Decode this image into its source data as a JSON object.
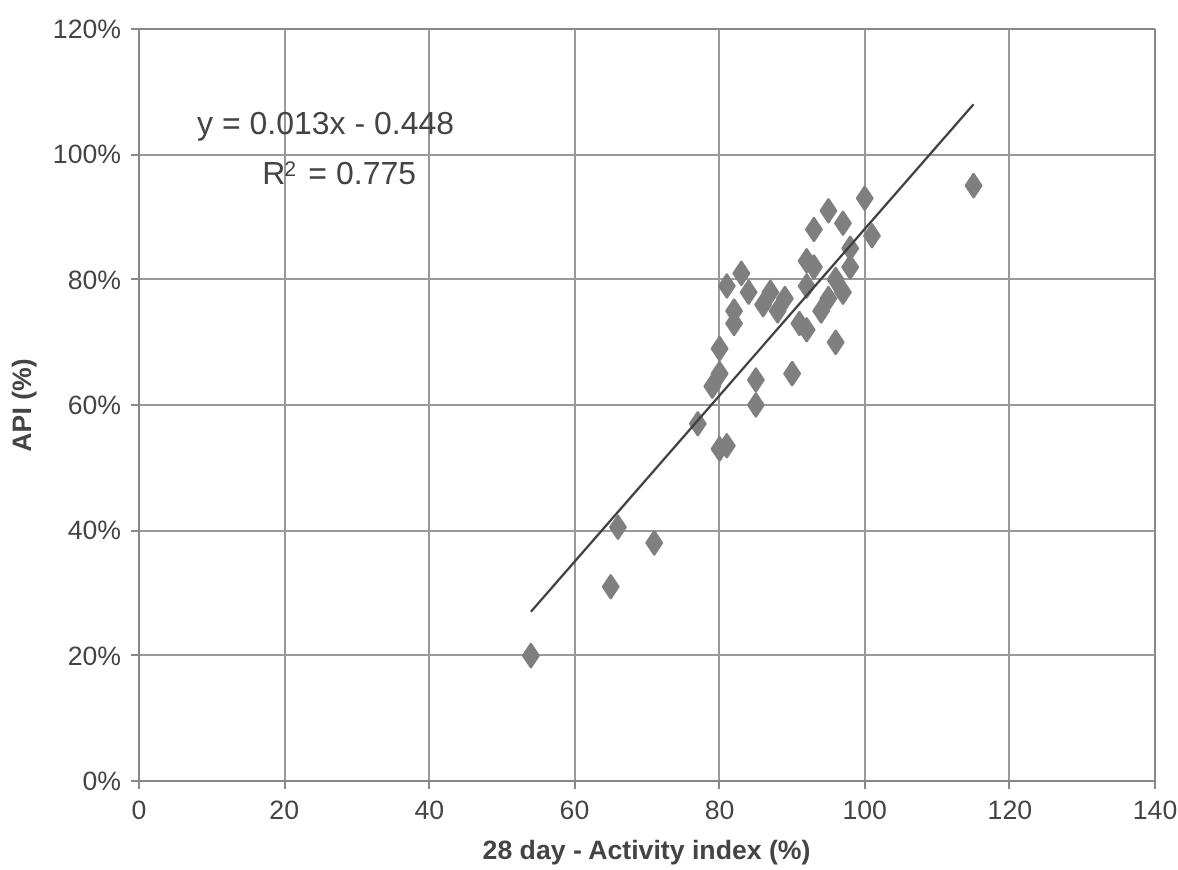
{
  "chart_data": {
    "type": "scatter",
    "xlabel": "28 day - Activity index (%)",
    "ylabel": "API (%)",
    "x": [
      54,
      65,
      66,
      71,
      77,
      79,
      80,
      80,
      80,
      81,
      81,
      82,
      82,
      83,
      84,
      85,
      85,
      86,
      87,
      88,
      89,
      90,
      91,
      92,
      92,
      92,
      93,
      93,
      94,
      95,
      95,
      96,
      96,
      97,
      97,
      98,
      98,
      100,
      101,
      115
    ],
    "series": [
      {
        "color": "#7f7f7f",
        "marker": "diamond",
        "values": [
          20,
          31,
          40.5,
          38,
          57,
          63,
          65,
          69,
          53,
          53.5,
          79,
          73,
          75,
          81,
          78,
          64,
          60,
          76,
          78,
          75,
          77,
          65,
          73,
          72,
          79,
          83,
          88,
          82,
          75,
          91,
          77,
          70,
          80,
          78,
          89,
          82,
          85,
          93,
          87,
          95
        ]
      },
      {
        "type": "line",
        "color": "#404040",
        "marker": "none",
        "x": [
          54,
          115
        ],
        "values": [
          27,
          108
        ]
      }
    ],
    "annotations": [
      {
        "text": "y = 0.013x - 0.448"
      },
      {
        "text": "R$^{2}$ = 0.775"
      }
    ],
    "xlim": [
      0,
      140
    ],
    "xticks": [
      0,
      20,
      40,
      60,
      80,
      100,
      120,
      140
    ],
    "ylim": [
      0,
      120
    ],
    "yticks": [
      {
        "value": 0,
        "label": "0%"
      },
      {
        "value": 20,
        "label": "20%"
      },
      {
        "value": 40,
        "label": "40%"
      },
      {
        "value": 60,
        "label": "60%"
      },
      {
        "value": 80,
        "label": "80%"
      },
      {
        "value": 100,
        "label": "100%"
      },
      {
        "value": 120,
        "label": "120%"
      }
    ],
    "grid": true
  }
}
